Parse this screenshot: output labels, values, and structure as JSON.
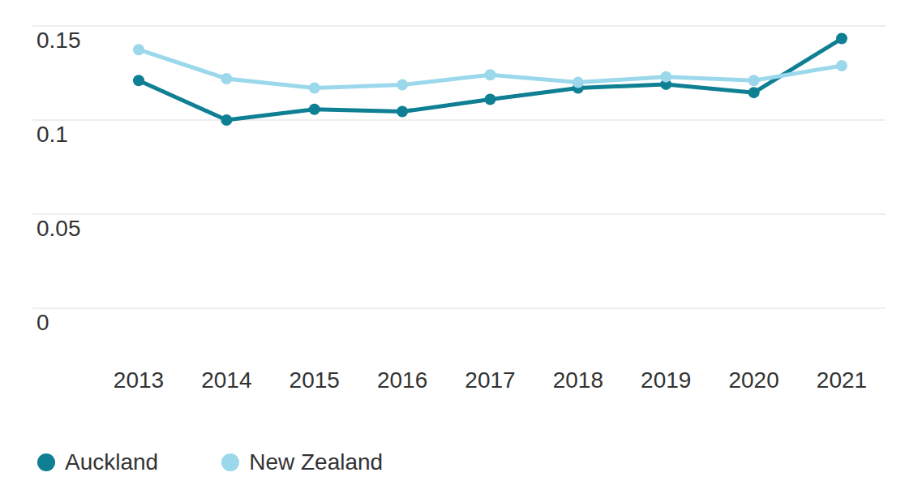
{
  "chart_data": {
    "type": "line",
    "categories": [
      "2013",
      "2014",
      "2015",
      "2016",
      "2017",
      "2018",
      "2019",
      "2020",
      "2021"
    ],
    "series": [
      {
        "name": "Auckland",
        "color": "#0f7f93",
        "marker": "circle",
        "values": [
          0.121,
          0.1,
          0.1057,
          0.1045,
          0.111,
          0.117,
          0.119,
          0.1146,
          0.1433
        ]
      },
      {
        "name": "New Zealand",
        "color": "#9bd8eb",
        "marker": "circle",
        "values": [
          0.1374,
          0.122,
          0.117,
          0.1187,
          0.124,
          0.12,
          0.123,
          0.121,
          0.1289
        ]
      }
    ],
    "ylim": [
      0,
      0.15
    ],
    "yticks": [
      0,
      0.05,
      0.1,
      0.15
    ],
    "grid": true,
    "legend": "bottom"
  }
}
